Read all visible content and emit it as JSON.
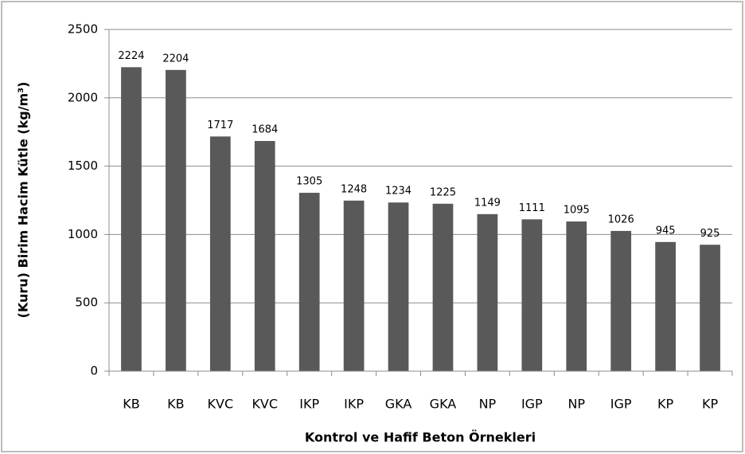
{
  "chart_data": {
    "type": "bar",
    "categories": [
      "KB",
      "KB",
      "KVC",
      "KVC",
      "IKP",
      "IKP",
      "GKA",
      "GKA",
      "NP",
      "IGP",
      "NP",
      "IGP",
      "KP",
      "KP"
    ],
    "values": [
      2224,
      2204,
      1717,
      1684,
      1305,
      1248,
      1234,
      1225,
      1149,
      1111,
      1095,
      1026,
      945,
      925
    ],
    "color": "#595959",
    "ylim": [
      0,
      2500
    ],
    "yticks": [
      0,
      500,
      1000,
      1500,
      2000,
      2500
    ],
    "grid": true,
    "y_label": "(Kuru) Birim Hacim Kütle (kg/m³)",
    "x_label": "Kontrol ve Hafif Beton Örnekleri"
  }
}
